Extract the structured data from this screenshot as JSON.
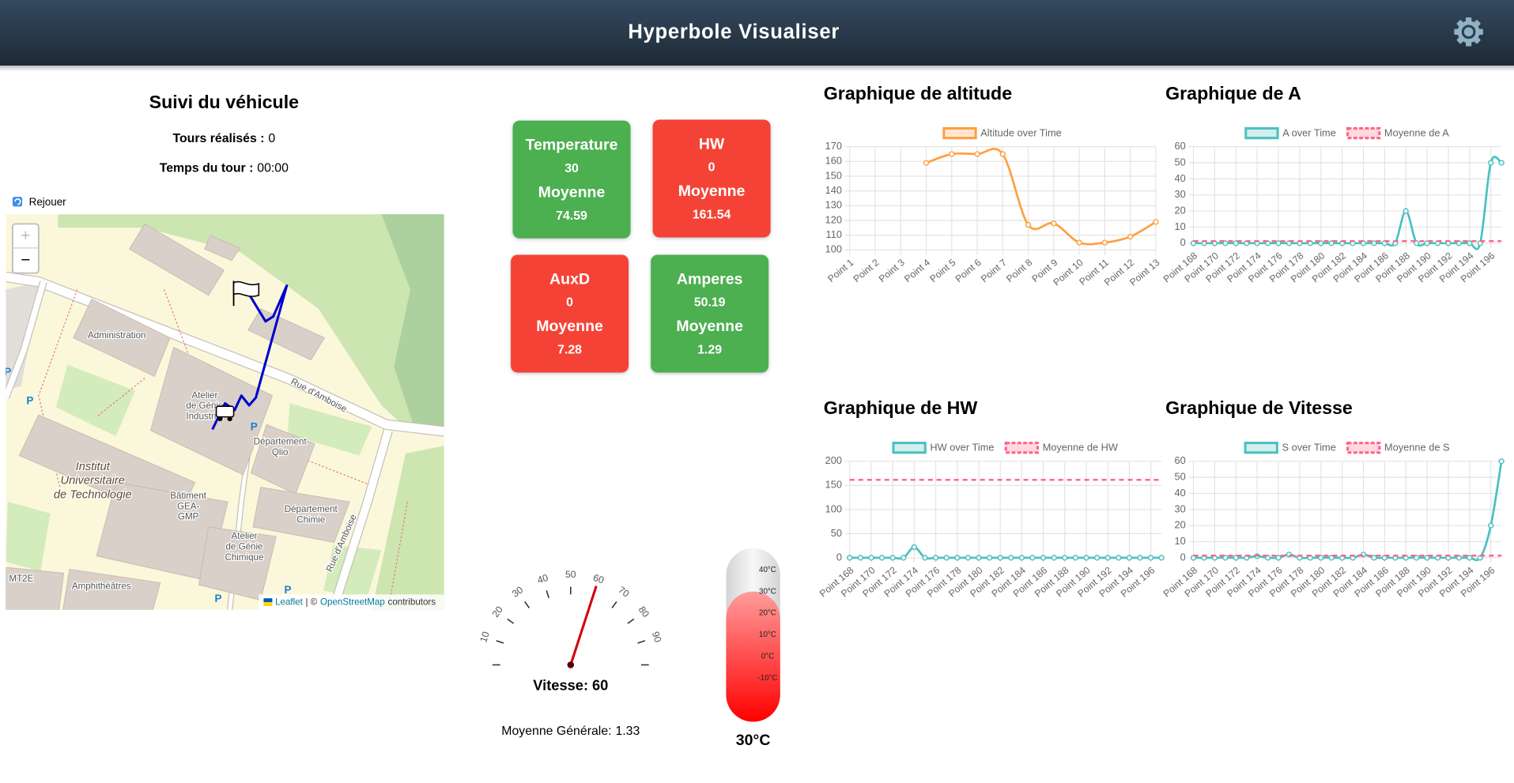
{
  "header": {
    "title": "Hyperbole Visualiser"
  },
  "tracking": {
    "title": "Suivi du véhicule",
    "laps_label": "Tours réalisés :",
    "laps": 0,
    "lap_time_label": "Temps du tour :",
    "lap_time": "00:00",
    "replay": "Rejouer"
  },
  "map": {
    "places": [
      [
        "Administration"
      ],
      [
        "Atelier",
        "de Génie",
        "Industriel"
      ],
      [
        "Département",
        "Qlio"
      ],
      [
        "Institut",
        "Universitaire",
        "de Technologie"
      ],
      [
        "Bâtiment",
        "GEA-",
        "GMP"
      ],
      [
        "Département",
        "Chimie"
      ],
      [
        "Atelier",
        "de Génie",
        "Chimique"
      ],
      [
        "MT2E"
      ],
      [
        "Amphithéâtres"
      ]
    ],
    "street": "Rue d'Amboise",
    "parking": "P",
    "zoom_in": "+",
    "zoom_out": "−",
    "attribution": {
      "leaflet": "Leaflet",
      "separator": "| ©",
      "osm": "OpenStreetMap",
      "suffix": "contributors"
    }
  },
  "cards": [
    {
      "name": "Temperature",
      "value": 30,
      "average_label": "Moyenne",
      "average": 74.59,
      "color": "#4caf50"
    },
    {
      "name": "HW",
      "value": 0,
      "average_label": "Moyenne",
      "average": 161.54,
      "color": "#f44336"
    },
    {
      "name": "AuxD",
      "value": 0,
      "average_label": "Moyenne",
      "average": 7.28,
      "color": "#f44336"
    },
    {
      "name": "Amperes",
      "value": 50.19,
      "average_label": "Moyenne",
      "average": 1.29,
      "color": "#4caf50"
    }
  ],
  "gauge": {
    "range": [
      0,
      100
    ],
    "ticks": [
      10,
      20,
      30,
      40,
      50,
      60,
      70,
      80,
      90
    ],
    "value": 60,
    "label": "Vitesse:",
    "average_label": "Moyenne Générale:",
    "average": 1.33
  },
  "thermometer": {
    "range": [
      -30,
      50
    ],
    "ticks": [
      {
        "value": 40,
        "label": "40°C"
      },
      {
        "value": 30,
        "label": "30°C"
      },
      {
        "value": 20,
        "label": "20°C"
      },
      {
        "value": 10,
        "label": "10°C"
      },
      {
        "value": 0,
        "label": "0°C"
      },
      {
        "value": -10,
        "label": "-10°C"
      }
    ],
    "value": 30,
    "value_label": "30°C"
  },
  "charts": [
    {
      "type": "line",
      "title": "Graphique de altitude",
      "categories": [
        "Point 1",
        "Point 2",
        "Point 3",
        "Point 4",
        "Point 5",
        "Point 6",
        "Point 7",
        "Point 8",
        "Point 9",
        "Point 10",
        "Point 11",
        "Point 12",
        "Point 13"
      ],
      "series": [
        {
          "name": "Altitude over Time",
          "color": "#ff9f40",
          "values": [
            null,
            null,
            null,
            159,
            165,
            165,
            165,
            117,
            118,
            105,
            105,
            109,
            119
          ]
        }
      ],
      "ylim": [
        100,
        170
      ],
      "yticks": [
        100,
        110,
        120,
        130,
        140,
        150,
        160,
        170
      ],
      "grid": true
    },
    {
      "type": "line",
      "title": "Graphique de A",
      "categories": [
        "Point 168",
        null,
        "Point 170",
        null,
        "Point 172",
        null,
        "Point 174",
        null,
        "Point 176",
        null,
        "Point 178",
        null,
        "Point 180",
        null,
        "Point 182",
        null,
        "Point 184",
        null,
        "Point 186",
        null,
        "Point 188",
        null,
        "Point 190",
        null,
        "Point 192",
        null,
        "Point 194",
        null,
        "Point 196",
        null
      ],
      "series": [
        {
          "name": "A over Time",
          "color": "#4bc0c0",
          "values": [
            0,
            0,
            0,
            0,
            0,
            0,
            0,
            0,
            0,
            0,
            0,
            0,
            0,
            0,
            0,
            0,
            0,
            0,
            0,
            0,
            20,
            0,
            0,
            0,
            0,
            0,
            0,
            0,
            50,
            50
          ]
        },
        {
          "name": "Moyenne de A",
          "color": "#ff6384",
          "value": 1.29,
          "dashed": true
        }
      ],
      "ylim": [
        0,
        60
      ],
      "yticks": [
        0,
        10,
        20,
        30,
        40,
        50,
        60
      ],
      "grid": true
    },
    {
      "type": "line",
      "title": "Graphique de HW",
      "categories": [
        "Point 168",
        null,
        "Point 170",
        null,
        "Point 172",
        null,
        "Point 174",
        null,
        "Point 176",
        null,
        "Point 178",
        null,
        "Point 180",
        null,
        "Point 182",
        null,
        "Point 184",
        null,
        "Point 186",
        null,
        "Point 188",
        null,
        "Point 190",
        null,
        "Point 192",
        null,
        "Point 194",
        null,
        "Point 196",
        null
      ],
      "series": [
        {
          "name": "HW over Time",
          "color": "#4bc0c0",
          "values": [
            0,
            0,
            0,
            0,
            0,
            0,
            22,
            0,
            0,
            0,
            0,
            0,
            0,
            0,
            0,
            0,
            0,
            0,
            0,
            0,
            0,
            0,
            0,
            0,
            0,
            0,
            0,
            0,
            0,
            0
          ]
        },
        {
          "name": "Moyenne de HW",
          "color": "#ff6384",
          "value": 161.54,
          "dashed": true
        }
      ],
      "ylim": [
        0,
        200
      ],
      "yticks": [
        0,
        50,
        100,
        150,
        200
      ],
      "grid": true
    },
    {
      "type": "line",
      "title": "Graphique de Vitesse",
      "categories": [
        "Point 168",
        null,
        "Point 170",
        null,
        "Point 172",
        null,
        "Point 174",
        null,
        "Point 176",
        null,
        "Point 178",
        null,
        "Point 180",
        null,
        "Point 182",
        null,
        "Point 184",
        null,
        "Point 186",
        null,
        "Point 188",
        null,
        "Point 190",
        null,
        "Point 192",
        null,
        "Point 194",
        null,
        "Point 196",
        null
      ],
      "series": [
        {
          "name": "S over Time",
          "color": "#4bc0c0",
          "values": [
            0,
            0,
            0,
            0,
            0,
            0,
            1,
            0,
            0,
            2,
            0,
            0,
            0,
            0,
            0,
            0,
            2,
            0,
            0,
            0,
            0,
            0,
            0,
            0,
            0,
            0,
            0,
            0,
            20,
            60
          ]
        },
        {
          "name": "Moyenne de S",
          "color": "#ff6384",
          "value": 1.33,
          "dashed": true
        }
      ],
      "ylim": [
        0,
        60
      ],
      "yticks": [
        0,
        10,
        20,
        30,
        40,
        50,
        60
      ],
      "grid": true
    }
  ]
}
